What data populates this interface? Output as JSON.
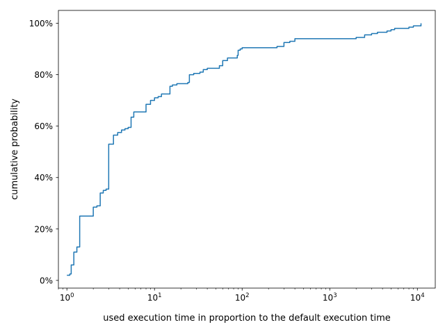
{
  "chart_data": {
    "type": "line",
    "title": "",
    "xlabel": "used execution time in proportion to the default execution time",
    "ylabel": "cumulative probability",
    "xscale": "log",
    "xlim": [
      0.8,
      16000
    ],
    "ylim": [
      -0.03,
      1.05
    ],
    "grid": false,
    "legend": "none",
    "line_color": "#1f77b4",
    "x_tick_values": [
      1,
      10,
      100,
      1000,
      10000
    ],
    "x_tick_bases": [
      "10",
      "10",
      "10",
      "10",
      "10"
    ],
    "x_tick_exponents": [
      "0",
      "1",
      "2",
      "3",
      "4"
    ],
    "y_tick_values": [
      0,
      0.2,
      0.4,
      0.6,
      0.8,
      1.0
    ],
    "y_tick_labels": [
      "0%",
      "20%",
      "40%",
      "60%",
      "80%",
      "100%"
    ],
    "series": [
      {
        "x": [
          1.0,
          1.08,
          1.12,
          1.2,
          1.3,
          1.4,
          1.6,
          1.9,
          2.0,
          2.2,
          2.4,
          2.6,
          2.8,
          3.0,
          3.1,
          3.4,
          3.8,
          4.2,
          4.6,
          5.0,
          5.4,
          5.8,
          6.4,
          7.0,
          8.0,
          9.0,
          10.0,
          11.0,
          12.0,
          14.0,
          15.0,
          16.0,
          18.0,
          24.0,
          25.0,
          28.0,
          33.0,
          36.0,
          40.0,
          55.0,
          60.0,
          68.0,
          88.0,
          90.0,
          95.0,
          100.0,
          140.0,
          250.0,
          300.0,
          350.0,
          400.0,
          800.0,
          1500.0,
          2000.0,
          2500.0,
          3000.0,
          3500.0,
          4500.0,
          5000.0,
          5500.0,
          8000.0,
          9000.0,
          11000.0
        ],
        "y": [
          0.02,
          0.025,
          0.06,
          0.11,
          0.13,
          0.25,
          0.25,
          0.25,
          0.285,
          0.29,
          0.34,
          0.35,
          0.355,
          0.53,
          0.53,
          0.565,
          0.575,
          0.585,
          0.59,
          0.595,
          0.635,
          0.655,
          0.655,
          0.655,
          0.685,
          0.7,
          0.71,
          0.715,
          0.725,
          0.725,
          0.755,
          0.76,
          0.765,
          0.77,
          0.8,
          0.805,
          0.81,
          0.82,
          0.825,
          0.835,
          0.855,
          0.865,
          0.875,
          0.895,
          0.9,
          0.905,
          0.905,
          0.91,
          0.925,
          0.93,
          0.94,
          0.94,
          0.94,
          0.945,
          0.955,
          0.96,
          0.965,
          0.97,
          0.975,
          0.98,
          0.985,
          0.99,
          1.0
        ]
      }
    ]
  }
}
